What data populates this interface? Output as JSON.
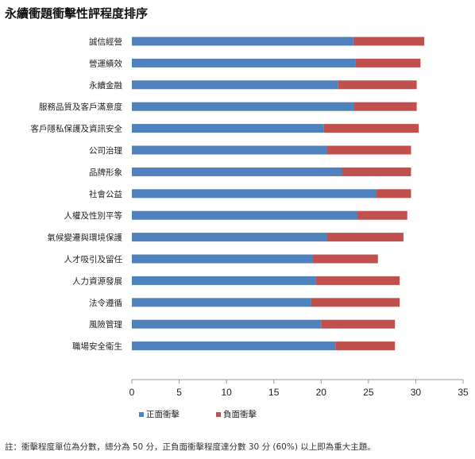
{
  "title": "永續衝題衝擊性評程度排序",
  "footnote": "註：衝擊程度單位為分數，總分為 50 分，正負面衝擊程度達分數 30 分 (60%) 以上即為重大主題。",
  "colors": {
    "positive": "#4f81bd",
    "negative": "#c0504d",
    "axis": "#999999"
  },
  "chart_data": {
    "type": "bar",
    "orientation": "horizontal",
    "stacked": true,
    "title": "永續衝題衝擊性評程度排序",
    "xlim": [
      0,
      35
    ],
    "x_ticks": [
      "0",
      "5",
      "10",
      "15",
      "20",
      "25",
      "30",
      "35"
    ],
    "x_tick_values": [
      0,
      5,
      10,
      15,
      20,
      25,
      30,
      35
    ],
    "grid": false,
    "legend_position": "bottom-left",
    "categories": [
      "誠信經營",
      "營運績效",
      "永續金融",
      "服務品質及客戶滿意度",
      "客戶隱私保護及資訊安全",
      "公司治理",
      "品牌形象",
      "社會公益",
      "人權及性別平等",
      "氣候變遷與環境保護",
      "人才吸引及留任",
      "人力資源發展",
      "法令遵循",
      "風險管理",
      "職場安全衛生"
    ],
    "series": [
      {
        "name": "正面衝擊",
        "values": [
          23.4,
          23.6,
          21.8,
          23.5,
          20.3,
          20.6,
          22.2,
          25.8,
          23.8,
          20.6,
          19.1,
          19.4,
          18.9,
          20.0,
          21.5
        ]
      },
      {
        "name": "負面衝擊",
        "values": [
          7.5,
          6.9,
          8.3,
          6.6,
          10.0,
          8.9,
          7.3,
          3.7,
          5.3,
          8.1,
          6.9,
          8.9,
          9.4,
          7.8,
          6.3
        ]
      }
    ]
  }
}
